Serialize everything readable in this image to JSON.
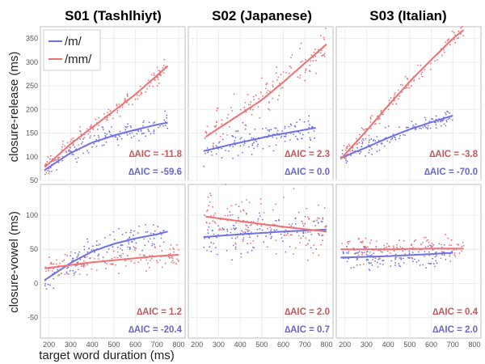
{
  "colors": {
    "m": "#6f6fe8",
    "mm": "#ef6f72",
    "m_text": "#6a67cc",
    "mm_text": "#c45a5d",
    "grid": "#ececec"
  },
  "chart_data": {
    "type": "scatter",
    "xlabel": "target word duration (ms)",
    "legend": {
      "placement": "top-left",
      "entries": [
        "/m/",
        "/mm/"
      ]
    },
    "columns": [
      "S01 (Tashlhiyt)",
      "S02 (Japanese)",
      "S03 (Italian)"
    ],
    "row_ylabels": [
      "closure-release (ms)",
      "closure-vowel (ms)"
    ],
    "x_ticks": [
      200,
      300,
      400,
      500,
      600,
      700,
      800
    ],
    "xlim": [
      160,
      830
    ],
    "rows": [
      {
        "ylabel": "closure-release (ms)",
        "ylim": [
          50,
          375
        ],
        "y_ticks": [
          50,
          100,
          150,
          200,
          250,
          300,
          350
        ]
      },
      {
        "ylabel": "closure-vowel (ms)",
        "ylim": [
          -80,
          145
        ],
        "y_ticks": [
          -50,
          0,
          50,
          100
        ]
      }
    ],
    "panels": [
      {
        "speaker": "S01 (Tashlhiyt)",
        "measure": "closure-release (ms)",
        "series": [
          {
            "name": "/m/",
            "x": [
              180,
              300,
              400,
              500,
              600,
              700,
              750
            ],
            "y": [
              72,
              108,
              130,
              145,
              157,
              168,
              172
            ],
            "aic": "∆AIC = -59.6",
            "spread": 16
          },
          {
            "name": "/mm/",
            "x": [
              180,
              300,
              400,
              500,
              600,
              700,
              750
            ],
            "y": [
              78,
              127,
              162,
              197,
              232,
              272,
              292
            ],
            "aic": "∆AIC = -11.8",
            "spread": 14
          }
        ]
      },
      {
        "speaker": "S02 (Japanese)",
        "measure": "closure-release (ms)",
        "series": [
          {
            "name": "/m/",
            "x": [
              230,
              350,
              450,
              550,
              650,
              750
            ],
            "y": [
              112,
              125,
              135,
              145,
              153,
              161
            ],
            "aic": "∆AIC = 0.0",
            "spread": 22
          },
          {
            "name": "/mm/",
            "x": [
              240,
              400,
              500,
              600,
              700,
              800
            ],
            "y": [
              142,
              190,
              220,
              258,
              298,
              338
            ],
            "aic": "∆AIC = 2.3",
            "spread": 30
          }
        ]
      },
      {
        "speaker": "S03 (Italian)",
        "measure": "closure-release (ms)",
        "series": [
          {
            "name": "/m/",
            "x": [
              180,
              300,
              400,
              500,
              600,
              700
            ],
            "y": [
              97,
              120,
              140,
              158,
              173,
              187
            ],
            "aic": "∆AIC = -70.0",
            "spread": 14
          },
          {
            "name": "/mm/",
            "x": [
              180,
              300,
              400,
              500,
              600,
              700,
              750
            ],
            "y": [
              95,
              155,
              208,
              259,
              305,
              350,
              368
            ],
            "aic": "∆AIC = -3.8",
            "spread": 12
          }
        ]
      },
      {
        "speaker": "S01 (Tashlhiyt)",
        "measure": "closure-vowel (ms)",
        "series": [
          {
            "name": "/m/",
            "x": [
              180,
              300,
              400,
              500,
              600,
              700,
              750
            ],
            "y": [
              5,
              30,
              47,
              58,
              66,
              72,
              76
            ],
            "aic": "∆AIC = -20.4",
            "spread": 14
          },
          {
            "name": "/mm/",
            "x": [
              180,
              300,
              400,
              500,
              600,
              700,
              800
            ],
            "y": [
              22,
              27,
              31,
              34,
              37,
              40,
              42
            ],
            "aic": "∆AIC = 1.2",
            "spread": 14
          }
        ]
      },
      {
        "speaker": "S02 (Japanese)",
        "measure": "closure-vowel (ms)",
        "series": [
          {
            "name": "/m/",
            "x": [
              230,
              400,
              600,
              800
            ],
            "y": [
              68,
              72,
              76,
              79
            ],
            "aic": "∆AIC = 0.7",
            "spread": 20
          },
          {
            "name": "/mm/",
            "x": [
              240,
              400,
              600,
              800
            ],
            "y": [
              98,
              91,
              83,
              76
            ],
            "aic": "∆AIC = 2.0",
            "spread": 30
          }
        ]
      },
      {
        "speaker": "S03 (Italian)",
        "measure": "closure-vowel (ms)",
        "series": [
          {
            "name": "/m/",
            "x": [
              180,
              400,
              600,
              700
            ],
            "y": [
              38,
              40,
              43,
              45
            ],
            "aic": "∆AIC = 2.0",
            "spread": 12
          },
          {
            "name": "/mm/",
            "x": [
              180,
              400,
              600,
              750
            ],
            "y": [
              50,
              50,
              51,
              51
            ],
            "aic": "∆AIC = 0.4",
            "spread": 12
          }
        ]
      }
    ]
  }
}
